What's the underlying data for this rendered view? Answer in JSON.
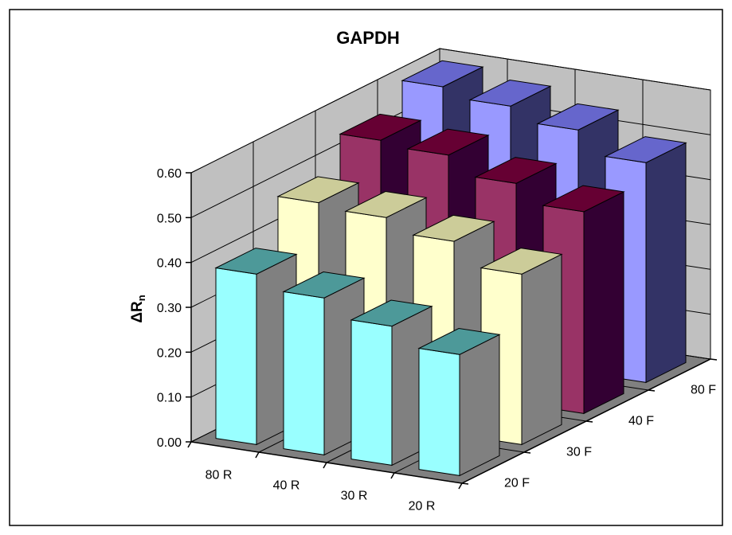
{
  "chart_data": {
    "type": "bar",
    "subtype": "3d-column",
    "title": "GAPDH",
    "ylabel": "ΔRn",
    "xlabel": "",
    "zlabel": "",
    "ylim": [
      0,
      0.6
    ],
    "y_ticks": [
      "0.00",
      "0.10",
      "0.20",
      "0.30",
      "0.40",
      "0.50",
      "0.60"
    ],
    "categories": [
      "80 R",
      "40 R",
      "30 R",
      "20 R"
    ],
    "depth_categories": [
      "20 F",
      "30 F",
      "40 F",
      "80 F"
    ],
    "grid": true,
    "legend": "none",
    "series": [
      {
        "depth": "20 F",
        "color": "#99ffff",
        "values": [
          0.38,
          0.35,
          0.31,
          0.27
        ]
      },
      {
        "depth": "30 F",
        "color": "#ffffcc",
        "values": [
          0.47,
          0.46,
          0.43,
          0.38
        ]
      },
      {
        "depth": "40 F",
        "color": "#993366",
        "values": [
          0.54,
          0.53,
          0.49,
          0.45
        ]
      },
      {
        "depth": "80 F",
        "color": "#9999ff",
        "values": [
          0.59,
          0.57,
          0.54,
          0.49
        ]
      }
    ]
  }
}
